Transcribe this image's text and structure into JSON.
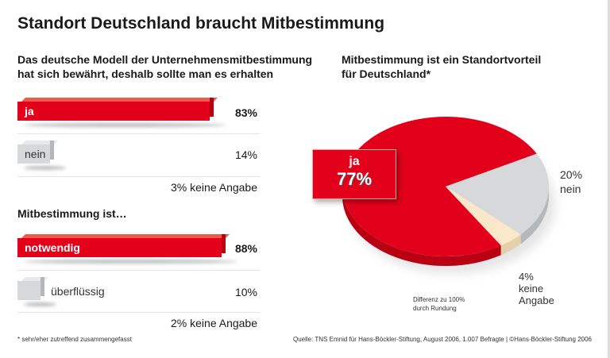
{
  "title": "Standort Deutschland braucht Mitbestimmung",
  "colors": {
    "red": "#e2001a",
    "red_top": "#ee5a4a",
    "red_side": "#b80012",
    "grey": "#d6d8da",
    "grey_side": "#b5b8bb",
    "beige": "#fbe7c9",
    "beige_side": "#e4cfae"
  },
  "chart_data": [
    {
      "type": "bar",
      "orientation": "horizontal",
      "title": "Das deutsche Modell der Unternehmensmitbestimmung hat sich bewährt, deshalb sollte man es erhalten",
      "title_lines": [
        "Das deutsche Modell der Unternehmensmitbestimmung",
        "hat sich bewährt, deshalb sollte man es erhalten"
      ],
      "categories": [
        "ja",
        "nein"
      ],
      "values": [
        83,
        14
      ],
      "value_labels": [
        "83%",
        "14%"
      ],
      "unit": "%",
      "note": "3% keine Angabe",
      "xlim": [
        0,
        100
      ]
    },
    {
      "type": "bar",
      "orientation": "horizontal",
      "title": "Mitbestimmung ist…",
      "categories": [
        "notwendig",
        "überflüssig"
      ],
      "values": [
        88,
        10
      ],
      "value_labels": [
        "88%",
        "10%"
      ],
      "unit": "%",
      "note": "2% keine Angabe",
      "xlim": [
        0,
        100
      ]
    },
    {
      "type": "pie",
      "title": "Mitbestimmung ist ein Standortvorteil für Deutschland*",
      "title_lines": [
        "Mitbestimmung ist ein Standortvorteil",
        "für Deutschland*"
      ],
      "slices": [
        {
          "label": "ja",
          "value": 77,
          "value_label": "77%"
        },
        {
          "label": "nein",
          "value": 20,
          "value_label": "20%"
        },
        {
          "label": "keine Angabe",
          "value": 4,
          "value_label": "4%",
          "label_lines": [
            "keine",
            "Angabe"
          ]
        }
      ],
      "note_lines": [
        "Differenz zu 100%",
        "durch Rundung"
      ]
    }
  ],
  "footnote": "* sehr/eher zutreffend zusammengefasst",
  "source": "Quelle: TNS Emnid für Hans-Böckler-Stiftung, August 2006, 1.007 Befragte | ©Hans-Böckler-Stiftung 2006"
}
